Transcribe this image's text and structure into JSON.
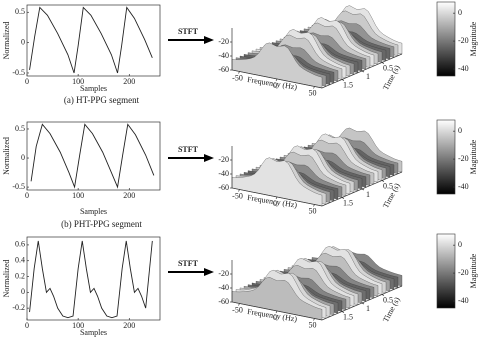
{
  "stft_label": "STFT",
  "rows": [
    {
      "caption": "(a) HT-PPG segment",
      "signal": {
        "type": "line",
        "ylabel": "Normalized",
        "xlabel": "Samples",
        "x": [
          5,
          15,
          25,
          40,
          60,
          80,
          92,
          100,
          110,
          125,
          145,
          165,
          177,
          185,
          195,
          210,
          230,
          245
        ],
        "values": [
          -0.45,
          0.1,
          0.58,
          0.45,
          0.15,
          -0.2,
          -0.5,
          -0.05,
          0.58,
          0.45,
          0.15,
          -0.2,
          -0.5,
          -0.05,
          0.58,
          0.4,
          0.05,
          -0.25
        ],
        "xlim": [
          0,
          260
        ],
        "ylim": [
          -0.55,
          0.62
        ],
        "xticks": [
          0,
          100,
          200
        ],
        "yticks": [
          0.5,
          0,
          -0.5
        ]
      },
      "spectrum": {
        "xlabel": "Frequency (Hz)",
        "ylabel": "Time (s)",
        "xlim": [
          -60,
          60
        ],
        "ylim": [
          0,
          2
        ],
        "zlim": [
          -60,
          0
        ],
        "xticks": [
          -50,
          0,
          50
        ],
        "yticks": [
          1.5,
          1,
          0.5
        ],
        "zticks": [
          -20,
          -40,
          -60
        ],
        "colorbar": {
          "label": "Magnitude",
          "lim": [
            -45,
            8
          ],
          "ticks": [
            0,
            -20,
            -40
          ]
        }
      }
    },
    {
      "caption": "(b) PHT-PPG segment",
      "signal": {
        "type": "line",
        "ylabel": "Normalized",
        "xlabel": "Samples",
        "x": [
          8,
          18,
          30,
          45,
          65,
          82,
          93,
          103,
          113,
          128,
          148,
          165,
          177,
          187,
          197,
          212,
          232,
          248
        ],
        "values": [
          -0.4,
          0.2,
          0.58,
          0.42,
          0.1,
          -0.25,
          -0.5,
          0.05,
          0.58,
          0.42,
          0.1,
          -0.25,
          -0.5,
          0.05,
          0.58,
          0.4,
          0.05,
          -0.3
        ],
        "xlim": [
          0,
          260
        ],
        "ylim": [
          -0.55,
          0.62
        ],
        "xticks": [
          0,
          100,
          200
        ],
        "yticks": [
          0.5,
          0,
          -0.5
        ]
      },
      "spectrum": {
        "xlabel": "Frequency (Hz)",
        "ylabel": "Time (s)",
        "xlim": [
          -60,
          60
        ],
        "ylim": [
          0,
          2
        ],
        "zlim": [
          -60,
          0
        ],
        "xticks": [
          -50,
          0,
          50
        ],
        "yticks": [
          1.5,
          1,
          0.5
        ],
        "zticks": [
          -20,
          -40,
          -60
        ],
        "colorbar": {
          "label": "Magnitude",
          "lim": [
            -45,
            8
          ],
          "ticks": [
            0,
            -20,
            -40
          ]
        }
      }
    },
    {
      "signal": {
        "type": "line",
        "ylabel": "Normalized",
        "xlabel": "Samples",
        "x": [
          5,
          14,
          22,
          30,
          38,
          45,
          52,
          60,
          70,
          80,
          90,
          100,
          108,
          116,
          124,
          131,
          138,
          146,
          156,
          166,
          176,
          186,
          194,
          202,
          210,
          217,
          224,
          232,
          245
        ],
        "values": [
          -0.25,
          0.3,
          0.65,
          0.3,
          0.0,
          0.05,
          -0.05,
          -0.2,
          -0.3,
          -0.32,
          -0.3,
          0.3,
          0.65,
          0.3,
          0.0,
          0.05,
          -0.05,
          -0.2,
          -0.3,
          -0.32,
          -0.3,
          0.3,
          0.65,
          0.3,
          0.0,
          0.05,
          -0.05,
          -0.2,
          0.65
        ],
        "xlim": [
          0,
          260
        ],
        "ylim": [
          -0.35,
          0.7
        ],
        "xticks": [
          0,
          100,
          200
        ],
        "yticks": [
          0.6,
          0.4,
          0.2,
          0,
          -0.2
        ]
      },
      "spectrum": {
        "xlabel": "Frequency (Hz)",
        "ylabel": "Time (s)",
        "xlim": [
          -60,
          60
        ],
        "ylim": [
          0,
          2
        ],
        "zlim": [
          -60,
          0
        ],
        "xticks": [
          -50,
          0,
          50
        ],
        "yticks": [
          1.5,
          1,
          0.5
        ],
        "zticks": [
          -20,
          -40,
          -60
        ],
        "colorbar": {
          "label": "Magnitude",
          "lim": [
            -45,
            8
          ],
          "ticks": [
            0,
            -20,
            -40
          ]
        }
      }
    }
  ]
}
